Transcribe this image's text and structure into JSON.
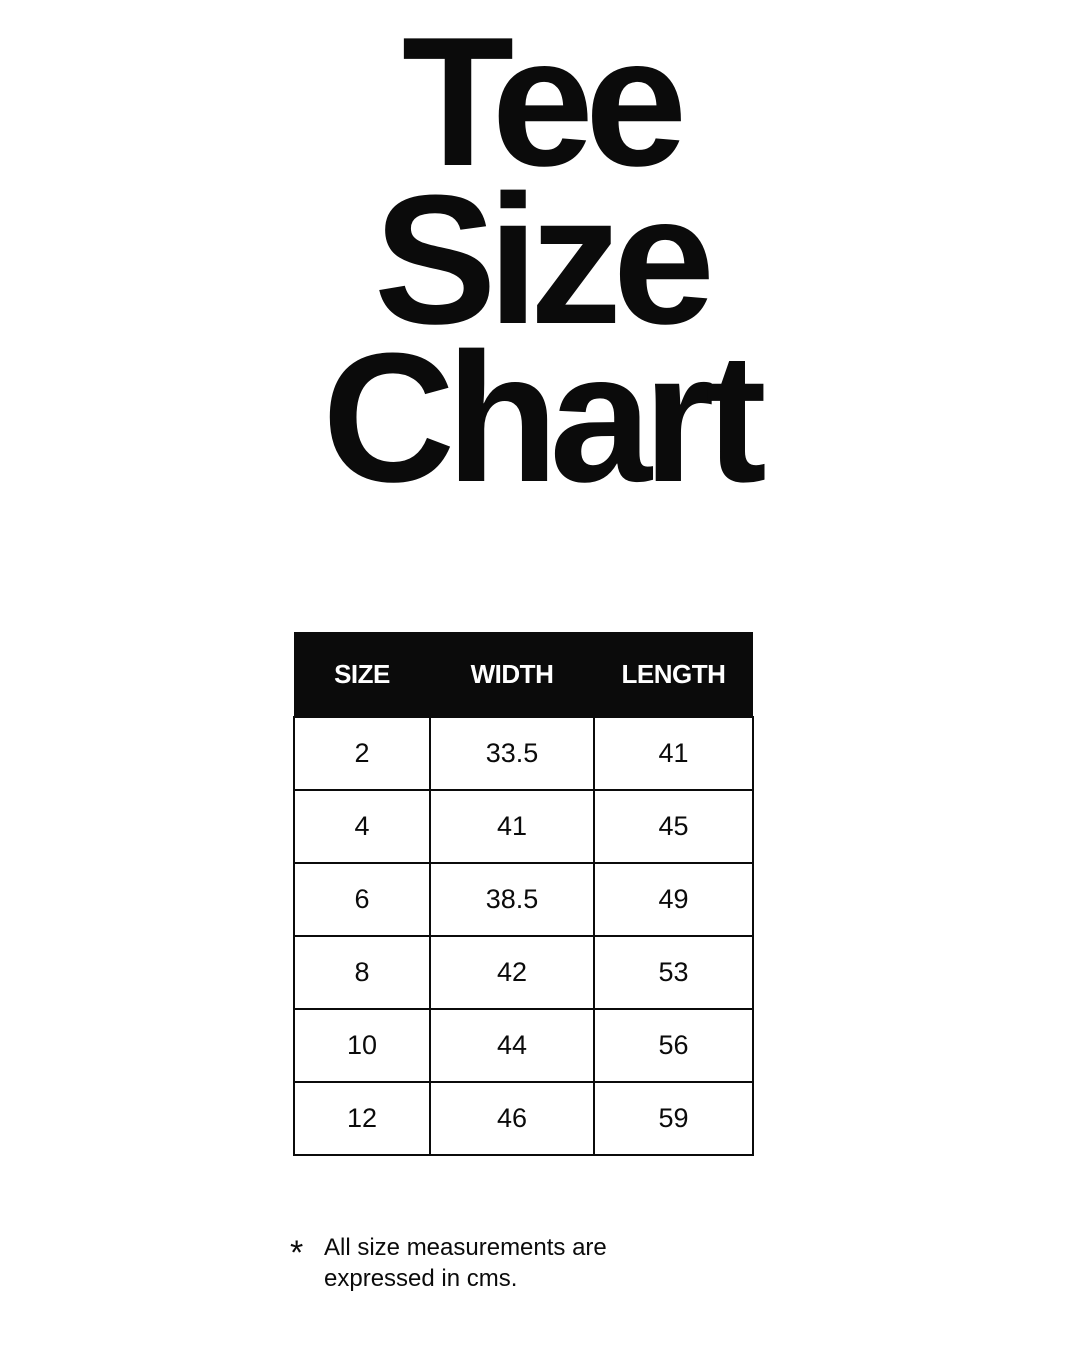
{
  "title": [
    "Tee",
    "Size",
    "Chart"
  ],
  "table": {
    "headers": [
      "SIZE",
      "WIDTH",
      "LENGTH"
    ],
    "rows": [
      [
        "2",
        "33.5",
        "41"
      ],
      [
        "4",
        "41",
        "45"
      ],
      [
        "6",
        "38.5",
        "49"
      ],
      [
        "8",
        "42",
        "53"
      ],
      [
        "10",
        "44",
        "56"
      ],
      [
        "12",
        "46",
        "59"
      ]
    ]
  },
  "footnote": {
    "marker": "*",
    "line1": "All size measurements are",
    "line2": "expressed in cms."
  }
}
